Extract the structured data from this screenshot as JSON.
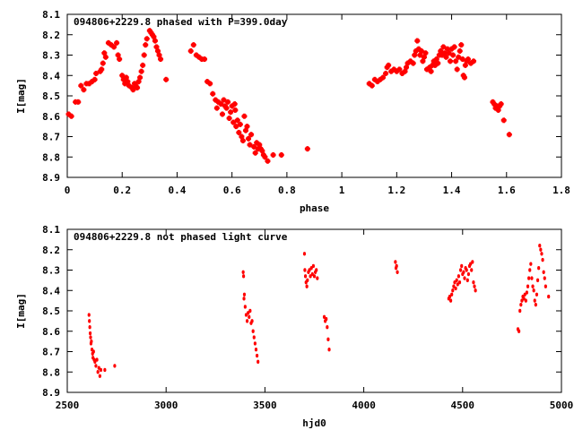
{
  "chart_data": [
    {
      "type": "scatter",
      "title": "094806+2229.8 phased with P=399.0day",
      "xlabel": "phase",
      "ylabel": "I[mag]",
      "xlim": [
        0,
        1.8
      ],
      "ylim": [
        8.1,
        8.9
      ],
      "y_inverted": true,
      "marker": "cross",
      "grid": false,
      "xticks": [
        "0",
        "0.2",
        "0.4",
        "0.6",
        "0.8",
        "1",
        "1.2",
        "1.4",
        "1.6",
        "1.8"
      ],
      "yticks": [
        "8.1",
        "8.2",
        "8.3",
        "8.4",
        "8.5",
        "8.6",
        "8.7",
        "8.8",
        "8.9"
      ],
      "color": "#ff0000",
      "points": [
        [
          0.005,
          8.59
        ],
        [
          0.015,
          8.6
        ],
        [
          0.03,
          8.53
        ],
        [
          0.04,
          8.53
        ],
        [
          0.05,
          8.45
        ],
        [
          0.06,
          8.47
        ],
        [
          0.07,
          8.44
        ],
        [
          0.08,
          8.44
        ],
        [
          0.09,
          8.43
        ],
        [
          0.1,
          8.42
        ],
        [
          0.105,
          8.39
        ],
        [
          0.12,
          8.38
        ],
        [
          0.125,
          8.37
        ],
        [
          0.13,
          8.34
        ],
        [
          0.135,
          8.29
        ],
        [
          0.14,
          8.31
        ],
        [
          0.15,
          8.24
        ],
        [
          0.16,
          8.25
        ],
        [
          0.17,
          8.26
        ],
        [
          0.18,
          8.24
        ],
        [
          0.185,
          8.3
        ],
        [
          0.19,
          8.32
        ],
        [
          0.2,
          8.4
        ],
        [
          0.205,
          8.42
        ],
        [
          0.21,
          8.44
        ],
        [
          0.215,
          8.41
        ],
        [
          0.22,
          8.43
        ],
        [
          0.225,
          8.45
        ],
        [
          0.235,
          8.46
        ],
        [
          0.24,
          8.47
        ],
        [
          0.245,
          8.44
        ],
        [
          0.25,
          8.45
        ],
        [
          0.255,
          8.46
        ],
        [
          0.26,
          8.43
        ],
        [
          0.265,
          8.41
        ],
        [
          0.27,
          8.38
        ],
        [
          0.275,
          8.35
        ],
        [
          0.28,
          8.3
        ],
        [
          0.285,
          8.25
        ],
        [
          0.29,
          8.22
        ],
        [
          0.3,
          8.18
        ],
        [
          0.305,
          8.19
        ],
        [
          0.31,
          8.2
        ],
        [
          0.315,
          8.21
        ],
        [
          0.32,
          8.23
        ],
        [
          0.325,
          8.26
        ],
        [
          0.33,
          8.28
        ],
        [
          0.335,
          8.3
        ],
        [
          0.34,
          8.32
        ],
        [
          0.36,
          8.42
        ],
        [
          0.45,
          8.28
        ],
        [
          0.46,
          8.25
        ],
        [
          0.47,
          8.3
        ],
        [
          0.48,
          8.31
        ],
        [
          0.49,
          8.32
        ],
        [
          0.5,
          8.32
        ],
        [
          0.51,
          8.43
        ],
        [
          0.52,
          8.44
        ],
        [
          0.53,
          8.49
        ],
        [
          0.54,
          8.52
        ],
        [
          0.545,
          8.56
        ],
        [
          0.55,
          8.53
        ],
        [
          0.56,
          8.54
        ],
        [
          0.565,
          8.59
        ],
        [
          0.57,
          8.52
        ],
        [
          0.575,
          8.55
        ],
        [
          0.58,
          8.56
        ],
        [
          0.585,
          8.53
        ],
        [
          0.59,
          8.61
        ],
        [
          0.595,
          8.58
        ],
        [
          0.6,
          8.55
        ],
        [
          0.605,
          8.63
        ],
        [
          0.61,
          8.54
        ],
        [
          0.612,
          8.57
        ],
        [
          0.615,
          8.65
        ],
        [
          0.62,
          8.62
        ],
        [
          0.625,
          8.68
        ],
        [
          0.63,
          8.64
        ],
        [
          0.635,
          8.7
        ],
        [
          0.64,
          8.72
        ],
        [
          0.645,
          8.6
        ],
        [
          0.65,
          8.67
        ],
        [
          0.655,
          8.65
        ],
        [
          0.66,
          8.71
        ],
        [
          0.665,
          8.74
        ],
        [
          0.67,
          8.69
        ],
        [
          0.68,
          8.75
        ],
        [
          0.685,
          8.78
        ],
        [
          0.69,
          8.73
        ],
        [
          0.695,
          8.76
        ],
        [
          0.7,
          8.74
        ],
        [
          0.705,
          8.76
        ],
        [
          0.71,
          8.77
        ],
        [
          0.715,
          8.79
        ],
        [
          0.72,
          8.8
        ],
        [
          0.73,
          8.82
        ],
        [
          0.75,
          8.79
        ],
        [
          0.78,
          8.79
        ],
        [
          0.875,
          8.76
        ],
        [
          1.1,
          8.44
        ],
        [
          1.11,
          8.45
        ],
        [
          1.12,
          8.42
        ],
        [
          1.13,
          8.43
        ],
        [
          1.14,
          8.42
        ],
        [
          1.15,
          8.41
        ],
        [
          1.16,
          8.39
        ],
        [
          1.165,
          8.36
        ],
        [
          1.17,
          8.35
        ],
        [
          1.18,
          8.38
        ],
        [
          1.19,
          8.37
        ],
        [
          1.2,
          8.38
        ],
        [
          1.21,
          8.37
        ],
        [
          1.22,
          8.39
        ],
        [
          1.23,
          8.38
        ],
        [
          1.235,
          8.36
        ],
        [
          1.24,
          8.34
        ],
        [
          1.25,
          8.33
        ],
        [
          1.26,
          8.34
        ],
        [
          1.265,
          8.3
        ],
        [
          1.27,
          8.28
        ],
        [
          1.275,
          8.23
        ],
        [
          1.28,
          8.27
        ],
        [
          1.285,
          8.3
        ],
        [
          1.29,
          8.28
        ],
        [
          1.295,
          8.33
        ],
        [
          1.3,
          8.31
        ],
        [
          1.305,
          8.29
        ],
        [
          1.31,
          8.37
        ],
        [
          1.32,
          8.36
        ],
        [
          1.325,
          8.38
        ],
        [
          1.33,
          8.35
        ],
        [
          1.335,
          8.33
        ],
        [
          1.34,
          8.35
        ],
        [
          1.345,
          8.32
        ],
        [
          1.35,
          8.34
        ],
        [
          1.355,
          8.3
        ],
        [
          1.36,
          8.28
        ],
        [
          1.365,
          8.3
        ],
        [
          1.37,
          8.26
        ],
        [
          1.375,
          8.29
        ],
        [
          1.38,
          8.31
        ],
        [
          1.385,
          8.27
        ],
        [
          1.39,
          8.29
        ],
        [
          1.395,
          8.33
        ],
        [
          1.4,
          8.27
        ],
        [
          1.405,
          8.3
        ],
        [
          1.41,
          8.26
        ],
        [
          1.415,
          8.33
        ],
        [
          1.42,
          8.37
        ],
        [
          1.425,
          8.31
        ],
        [
          1.43,
          8.28
        ],
        [
          1.435,
          8.25
        ],
        [
          1.44,
          8.32
        ],
        [
          1.443,
          8.4
        ],
        [
          1.447,
          8.41
        ],
        [
          1.45,
          8.35
        ],
        [
          1.455,
          8.33
        ],
        [
          1.46,
          8.32
        ],
        [
          1.47,
          8.34
        ],
        [
          1.48,
          8.33
        ],
        [
          1.55,
          8.53
        ],
        [
          1.555,
          8.54
        ],
        [
          1.56,
          8.56
        ],
        [
          1.565,
          8.55
        ],
        [
          1.57,
          8.57
        ],
        [
          1.575,
          8.55
        ],
        [
          1.58,
          8.54
        ],
        [
          1.59,
          8.62
        ],
        [
          1.61,
          8.69
        ]
      ]
    },
    {
      "type": "scatter",
      "title": "094806+2229.8 not phased light curve",
      "xlabel": "hjd0",
      "ylabel": "I[mag]",
      "xlim": [
        2500,
        5000
      ],
      "ylim": [
        8.1,
        8.9
      ],
      "y_inverted": true,
      "marker": "dot",
      "grid": false,
      "xticks": [
        "2500",
        "3000",
        "3500",
        "4000",
        "4500",
        "5000"
      ],
      "yticks": [
        "8.1",
        "8.2",
        "8.3",
        "8.4",
        "8.5",
        "8.6",
        "8.7",
        "8.8",
        "8.9"
      ],
      "color": "#ff0000",
      "points": [
        [
          2610,
          8.52
        ],
        [
          2612,
          8.55
        ],
        [
          2614,
          8.58
        ],
        [
          2616,
          8.61
        ],
        [
          2618,
          8.63
        ],
        [
          2620,
          8.66
        ],
        [
          2622,
          8.65
        ],
        [
          2625,
          8.69
        ],
        [
          2628,
          8.71
        ],
        [
          2630,
          8.73
        ],
        [
          2633,
          8.7
        ],
        [
          2636,
          8.74
        ],
        [
          2640,
          8.75
        ],
        [
          2645,
          8.77
        ],
        [
          2650,
          8.74
        ],
        [
          2655,
          8.8
        ],
        [
          2660,
          8.78
        ],
        [
          2665,
          8.82
        ],
        [
          2670,
          8.79
        ],
        [
          2690,
          8.79
        ],
        [
          2740,
          8.77
        ],
        [
          3390,
          8.31
        ],
        [
          3392,
          8.33
        ],
        [
          3394,
          8.44
        ],
        [
          3396,
          8.42
        ],
        [
          3400,
          8.48
        ],
        [
          3405,
          8.52
        ],
        [
          3410,
          8.55
        ],
        [
          3415,
          8.51
        ],
        [
          3420,
          8.53
        ],
        [
          3425,
          8.5
        ],
        [
          3430,
          8.56
        ],
        [
          3435,
          8.55
        ],
        [
          3440,
          8.6
        ],
        [
          3445,
          8.63
        ],
        [
          3450,
          8.66
        ],
        [
          3455,
          8.69
        ],
        [
          3460,
          8.72
        ],
        [
          3465,
          8.75
        ],
        [
          3700,
          8.22
        ],
        [
          3702,
          8.3
        ],
        [
          3705,
          8.33
        ],
        [
          3708,
          8.36
        ],
        [
          3712,
          8.38
        ],
        [
          3715,
          8.35
        ],
        [
          3720,
          8.31
        ],
        [
          3725,
          8.3
        ],
        [
          3730,
          8.33
        ],
        [
          3735,
          8.29
        ],
        [
          3740,
          8.32
        ],
        [
          3745,
          8.28
        ],
        [
          3750,
          8.33
        ],
        [
          3755,
          8.31
        ],
        [
          3760,
          8.3
        ],
        [
          3765,
          8.34
        ],
        [
          3800,
          8.53
        ],
        [
          3805,
          8.55
        ],
        [
          3810,
          8.54
        ],
        [
          3815,
          8.58
        ],
        [
          3820,
          8.64
        ],
        [
          3825,
          8.69
        ],
        [
          4160,
          8.26
        ],
        [
          4163,
          8.29
        ],
        [
          4166,
          8.28
        ],
        [
          4170,
          8.31
        ],
        [
          4430,
          8.44
        ],
        [
          4435,
          8.43
        ],
        [
          4440,
          8.45
        ],
        [
          4445,
          8.42
        ],
        [
          4450,
          8.4
        ],
        [
          4455,
          8.38
        ],
        [
          4460,
          8.36
        ],
        [
          4465,
          8.39
        ],
        [
          4470,
          8.35
        ],
        [
          4475,
          8.37
        ],
        [
          4480,
          8.33
        ],
        [
          4485,
          8.36
        ],
        [
          4490,
          8.3
        ],
        [
          4495,
          8.28
        ],
        [
          4500,
          8.32
        ],
        [
          4505,
          8.31
        ],
        [
          4510,
          8.34
        ],
        [
          4515,
          8.29
        ],
        [
          4520,
          8.3
        ],
        [
          4525,
          8.35
        ],
        [
          4530,
          8.32
        ],
        [
          4535,
          8.28
        ],
        [
          4540,
          8.27
        ],
        [
          4545,
          8.3
        ],
        [
          4550,
          8.26
        ],
        [
          4555,
          8.36
        ],
        [
          4560,
          8.38
        ],
        [
          4565,
          8.4
        ],
        [
          4780,
          8.59
        ],
        [
          4785,
          8.6
        ],
        [
          4790,
          8.5
        ],
        [
          4795,
          8.47
        ],
        [
          4800,
          8.45
        ],
        [
          4805,
          8.43
        ],
        [
          4810,
          8.44
        ],
        [
          4815,
          8.42
        ],
        [
          4820,
          8.45
        ],
        [
          4825,
          8.41
        ],
        [
          4830,
          8.38
        ],
        [
          4835,
          8.34
        ],
        [
          4840,
          8.3
        ],
        [
          4845,
          8.27
        ],
        [
          4850,
          8.34
        ],
        [
          4855,
          8.38
        ],
        [
          4860,
          8.4
        ],
        [
          4865,
          8.45
        ],
        [
          4870,
          8.47
        ],
        [
          4875,
          8.42
        ],
        [
          4880,
          8.35
        ],
        [
          4885,
          8.29
        ],
        [
          4890,
          8.18
        ],
        [
          4895,
          8.2
        ],
        [
          4900,
          8.22
        ],
        [
          4905,
          8.25
        ],
        [
          4910,
          8.31
        ],
        [
          4915,
          8.34
        ],
        [
          4920,
          8.38
        ],
        [
          4935,
          8.43
        ]
      ]
    }
  ]
}
